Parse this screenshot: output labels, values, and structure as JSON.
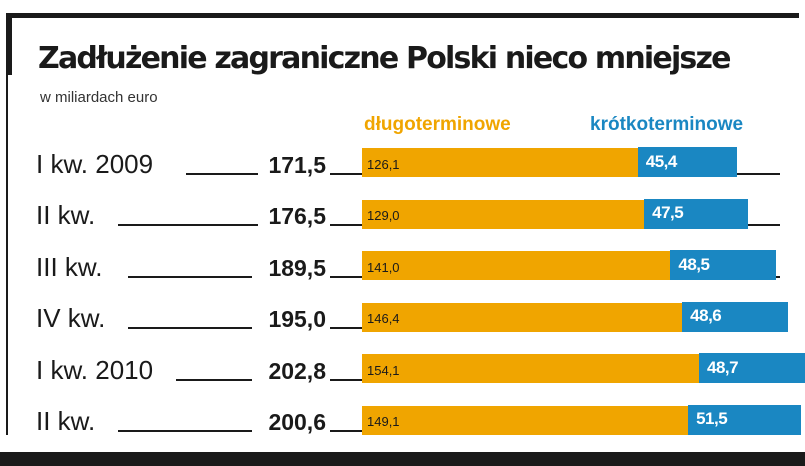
{
  "chart_data": {
    "type": "bar",
    "stacked": true,
    "orientation": "horizontal",
    "title": "Zadłużenie zagraniczne Polski nieco mniejsze",
    "subtitle": "w miliardach euro",
    "categories": [
      "I kw. 2009",
      "II kw.",
      "III kw.",
      "IV kw.",
      "I kw. 2010",
      "II kw."
    ],
    "totals": [
      "171,5",
      "176,5",
      "189,5",
      "195,0",
      "202,8",
      "200,6"
    ],
    "series": [
      {
        "name": "długoterminowe",
        "color": "#f0a500",
        "values": [
          126.1,
          129.0,
          141.0,
          146.4,
          154.1,
          149.1
        ],
        "labels": [
          "126,1",
          "129,0",
          "141,0",
          "146,4",
          "154,1",
          "149,1"
        ]
      },
      {
        "name": "krótkoterminowe",
        "color": "#1a87c2",
        "values": [
          45.4,
          47.5,
          48.5,
          48.6,
          48.7,
          51.5
        ],
        "labels": [
          "45,4",
          "47,5",
          "48,5",
          "48,6",
          "48,7",
          "51,5"
        ]
      }
    ],
    "legend": "top-right"
  }
}
